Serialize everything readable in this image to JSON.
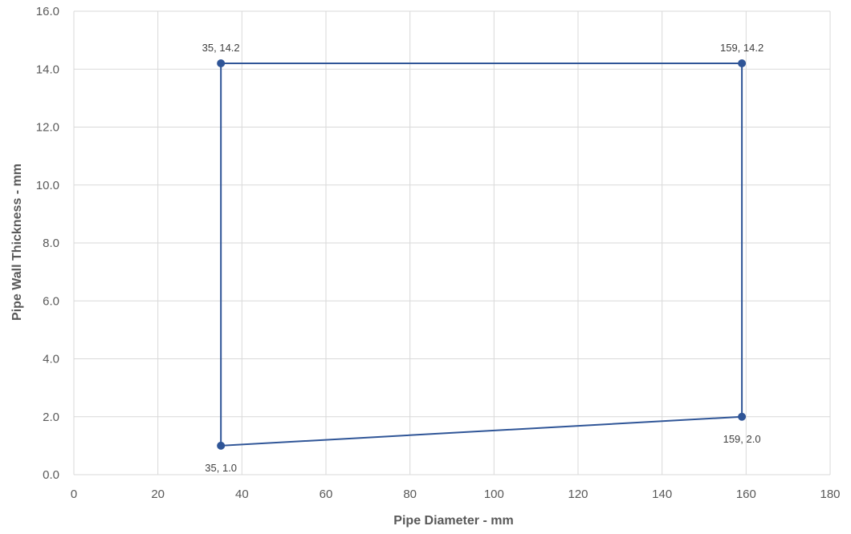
{
  "chart_data": {
    "type": "scatter",
    "title": "",
    "xlabel": "Pipe Diameter - mm",
    "ylabel": "Pipe Wall Thickness - mm",
    "xlim": [
      0,
      180
    ],
    "ylim": [
      0,
      16
    ],
    "x_ticks": [
      "0",
      "20",
      "40",
      "60",
      "80",
      "100",
      "120",
      "140",
      "160",
      "180"
    ],
    "y_ticks": [
      "0.0",
      "2.0",
      "4.0",
      "6.0",
      "8.0",
      "10.0",
      "12.0",
      "14.0",
      "16.0"
    ],
    "grid": true,
    "series": [
      {
        "connected": true,
        "closed": true,
        "color": "#2f5597",
        "points": [
          {
            "x": 35,
            "y": 14.2,
            "label": "35, 14.2"
          },
          {
            "x": 159,
            "y": 14.2,
            "label": "159, 14.2"
          },
          {
            "x": 159,
            "y": 2.0,
            "label": "159, 2.0"
          },
          {
            "x": 35,
            "y": 1.0,
            "label": "35, 1.0"
          }
        ]
      }
    ]
  }
}
